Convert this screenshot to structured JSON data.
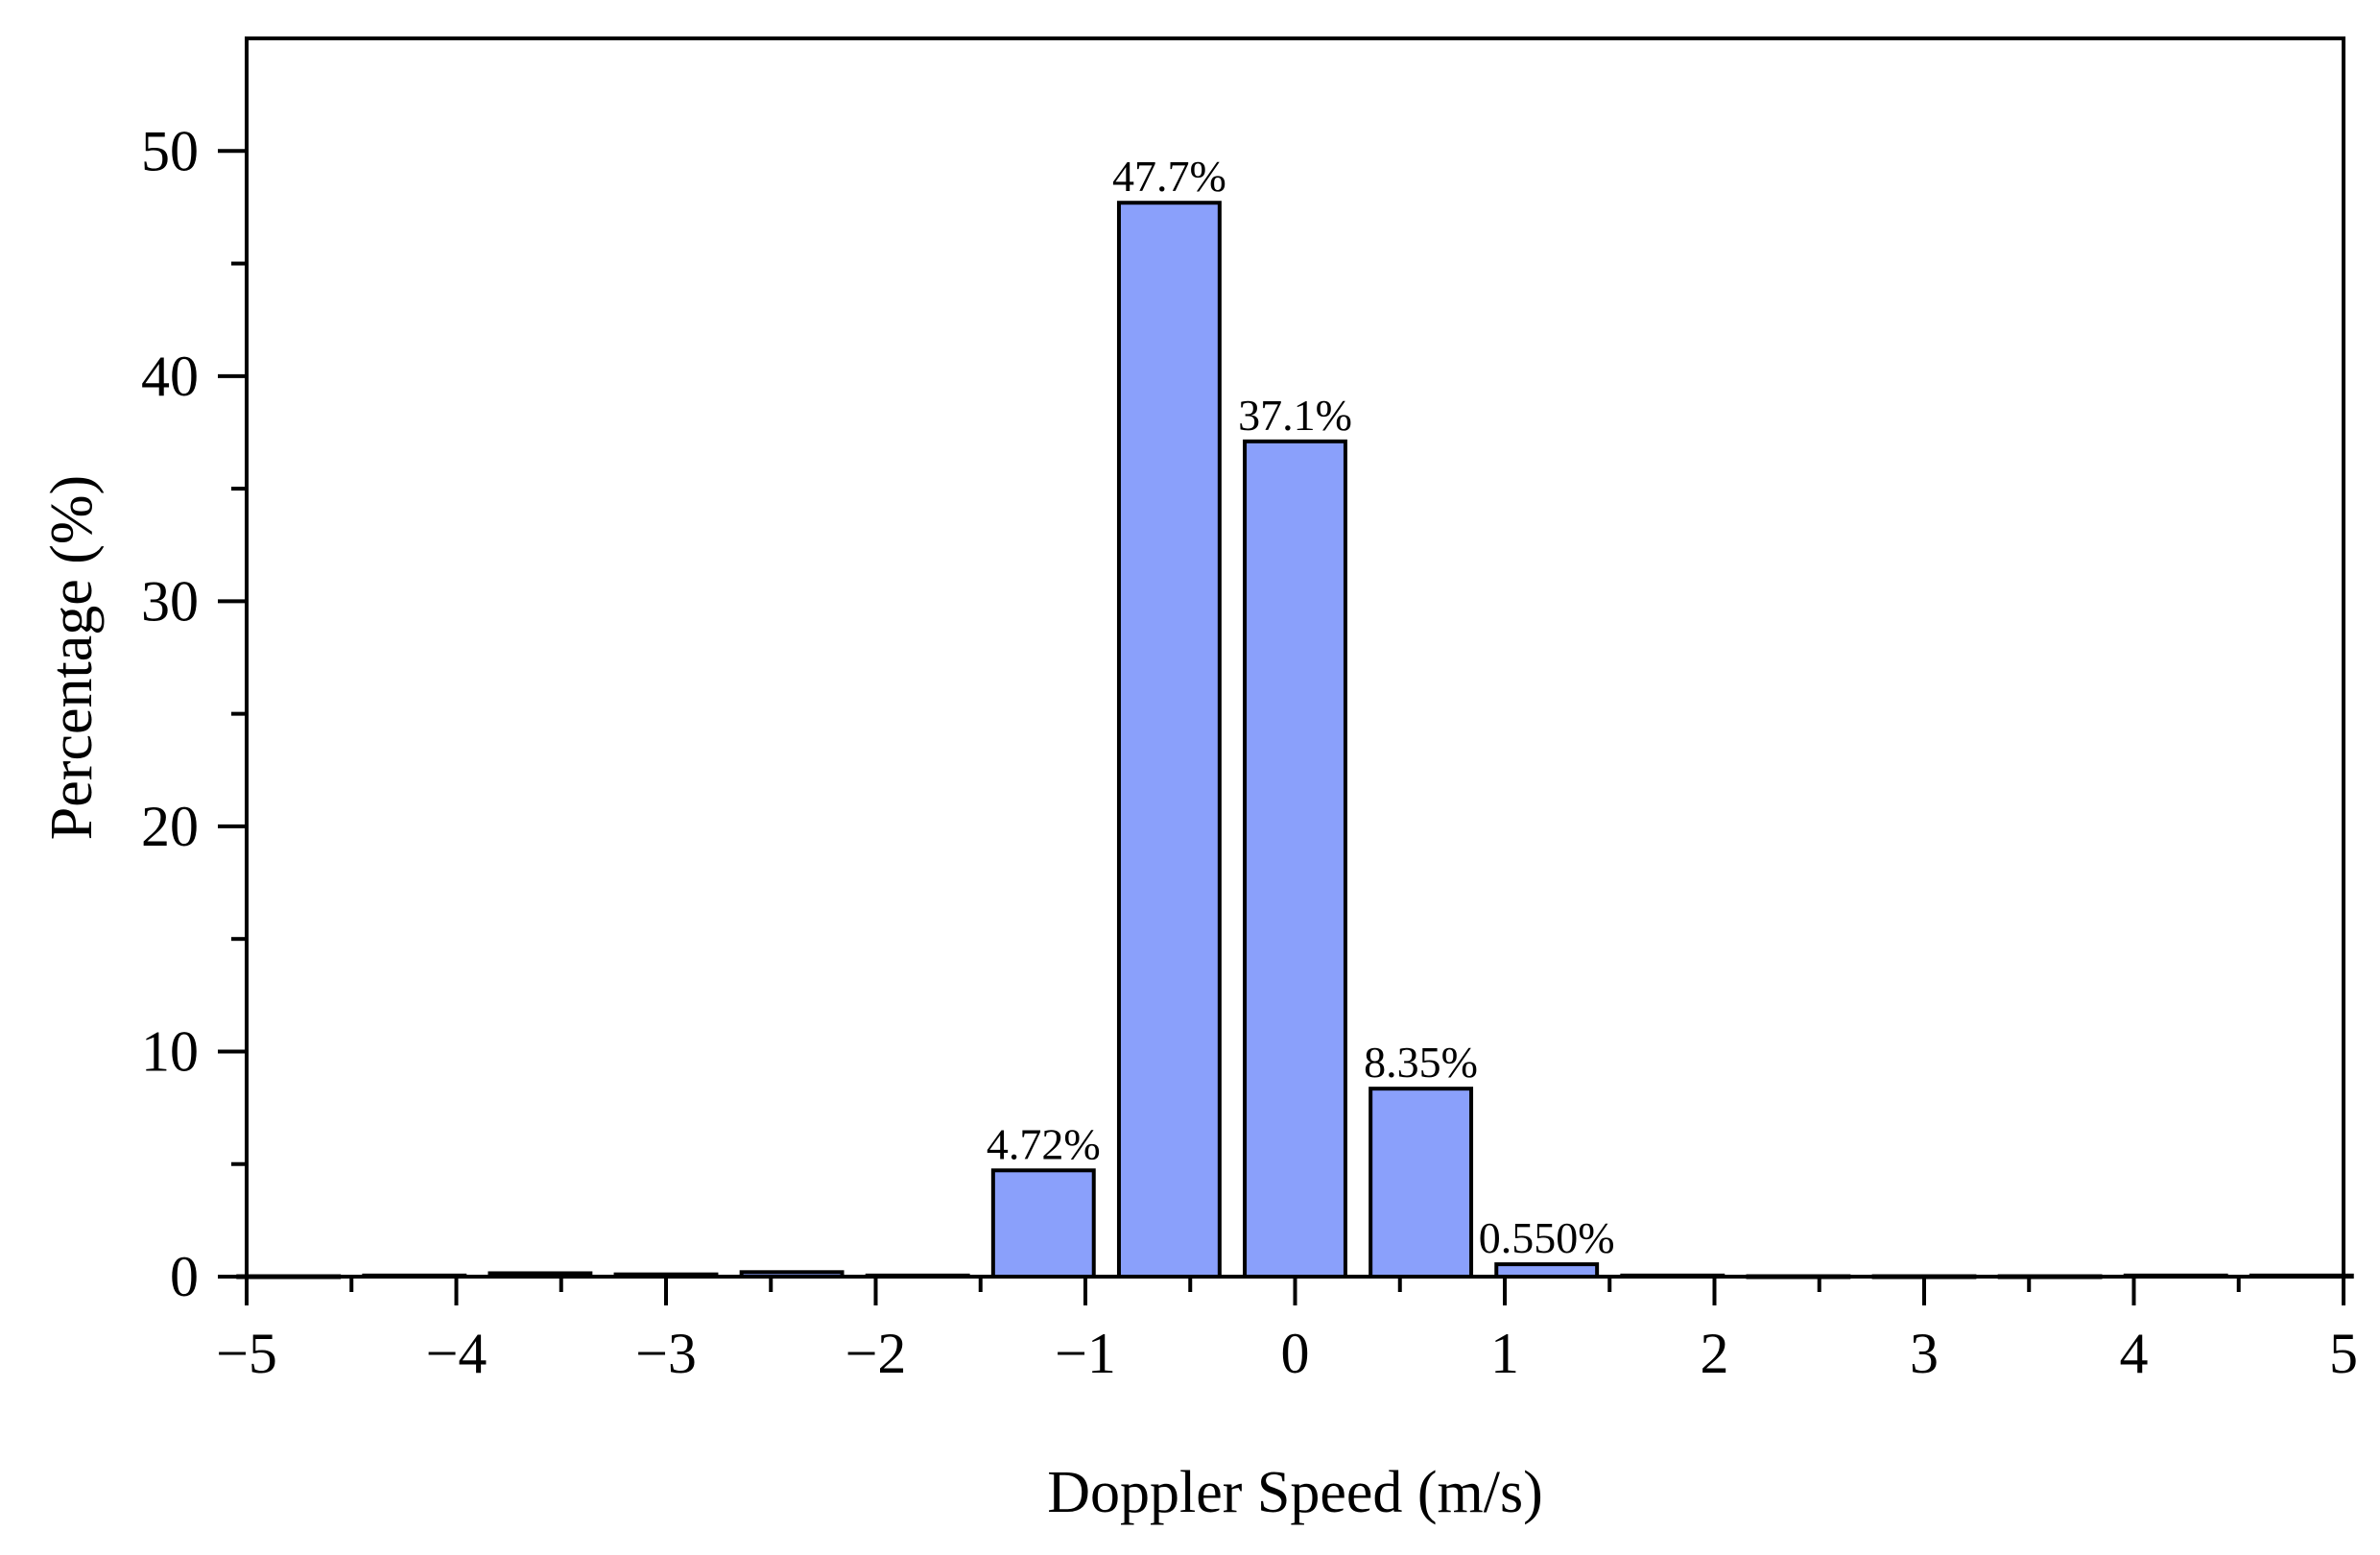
{
  "chart_data": {
    "type": "bar",
    "title": "",
    "xlabel": "Doppler Speed (m/s)",
    "ylabel": "Percentage (%)",
    "xlim": [
      -5,
      5
    ],
    "ylim": [
      0,
      55
    ],
    "xticks": [
      "−5",
      "−4",
      "−3",
      "−2",
      "−1",
      "0",
      "1",
      "2",
      "3",
      "4",
      "5"
    ],
    "yticks": [
      "0",
      "10",
      "20",
      "30",
      "40",
      "50"
    ],
    "bar_width": 0.48,
    "bar_color": "#8aa0fb",
    "edge_color": "#000000",
    "x": [
      -4.8,
      -4.2,
      -3.6,
      -3.0,
      -2.4,
      -1.8,
      -1.2,
      -0.6,
      0.0,
      0.6,
      1.2,
      1.8,
      2.4,
      3.0,
      3.6,
      4.2,
      4.8
    ],
    "values": [
      0.02,
      0.05,
      0.15,
      0.1,
      0.2,
      0.05,
      4.72,
      47.7,
      37.1,
      8.35,
      0.55,
      0.05,
      0.02,
      0.02,
      0.02,
      0.05,
      0.05
    ],
    "data_labels": [
      "",
      "",
      "",
      "",
      "",
      "",
      "4.72%",
      "47.7%",
      "37.1%",
      "8.35%",
      "0.550%",
      "",
      "",
      "",
      "",
      "",
      ""
    ],
    "grid": false,
    "legend": "none"
  }
}
